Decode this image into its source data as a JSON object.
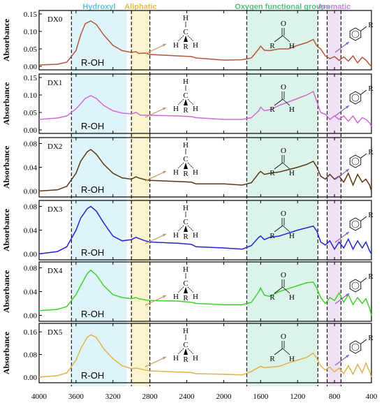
{
  "chart_data": {
    "type": "line",
    "x_ticks": [
      4000,
      3600,
      3200,
      2800,
      2400,
      2000,
      1600,
      1200,
      800,
      400
    ],
    "xlim": [
      4000,
      400
    ],
    "ylabel": "Absorbance",
    "regions": [
      {
        "label": "Hydroxyl",
        "x": [
          3650,
          3050
        ],
        "color": "#dff4f8",
        "label_color": "#5fc3dd"
      },
      {
        "label": "Aliphatic",
        "x": [
          3000,
          2800
        ],
        "color": "#fbf5cf",
        "label_color": "#e3bf49"
      },
      {
        "label": "Oxygen functional groups",
        "x": [
          1750,
          980
        ],
        "color": "#dcf3ea",
        "label_color": "#52c07e"
      },
      {
        "label": "Aromatic",
        "x": [
          880,
          730
        ],
        "color": "#f0e2f5",
        "label_color": "#c585d6"
      }
    ],
    "dashed_lines": [
      3650,
      3000,
      2800,
      1750,
      980,
      880,
      730
    ],
    "group_labels": {
      "roh": "R-OH"
    },
    "panels": [
      {
        "name": "DX0",
        "color": "#b5553d",
        "ylim": [
          -0.01,
          0.16
        ],
        "yticks": [
          "0.00",
          "0.05",
          "0.10",
          "0.15"
        ],
        "ytick_vals": [
          0,
          0.05,
          0.1,
          0.15
        ],
        "points": [
          [
            4000,
            0.004
          ],
          [
            3800,
            0.006
          ],
          [
            3700,
            0.012
          ],
          [
            3600,
            0.045
          ],
          [
            3550,
            0.09
          ],
          [
            3500,
            0.122
          ],
          [
            3440,
            0.13
          ],
          [
            3380,
            0.12
          ],
          [
            3300,
            0.09
          ],
          [
            3200,
            0.06
          ],
          [
            3100,
            0.045
          ],
          [
            3000,
            0.04
          ],
          [
            2950,
            0.042
          ],
          [
            2920,
            0.037
          ],
          [
            2850,
            0.038
          ],
          [
            2800,
            0.034
          ],
          [
            2500,
            0.03
          ],
          [
            2350,
            0.028
          ],
          [
            2300,
            0.024
          ],
          [
            2000,
            0.018
          ],
          [
            1800,
            0.019
          ],
          [
            1700,
            0.024
          ],
          [
            1620,
            0.05
          ],
          [
            1600,
            0.058
          ],
          [
            1560,
            0.046
          ],
          [
            1500,
            0.045
          ],
          [
            1400,
            0.05
          ],
          [
            1300,
            0.05
          ],
          [
            1200,
            0.06
          ],
          [
            1100,
            0.068
          ],
          [
            1030,
            0.077
          ],
          [
            990,
            0.058
          ],
          [
            950,
            0.05
          ],
          [
            900,
            0.03
          ],
          [
            850,
            0.022
          ],
          [
            800,
            0.028
          ],
          [
            750,
            0.017
          ],
          [
            700,
            0.027
          ],
          [
            650,
            0.015
          ],
          [
            600,
            0.03
          ],
          [
            550,
            0.01
          ],
          [
            500,
            0.026
          ],
          [
            460,
            0.018
          ],
          [
            420,
            0.005
          ],
          [
            400,
            0.0
          ]
        ]
      },
      {
        "name": "DX1",
        "color": "#d069d6",
        "ylim": [
          -0.01,
          0.16
        ],
        "yticks": [
          "0.00",
          "0.05",
          "0.10",
          "0.15"
        ],
        "ytick_vals": [
          0,
          0.05,
          0.1,
          0.15
        ],
        "points": [
          [
            4000,
            0.03
          ],
          [
            3800,
            0.034
          ],
          [
            3700,
            0.04
          ],
          [
            3600,
            0.06
          ],
          [
            3500,
            0.09
          ],
          [
            3440,
            0.098
          ],
          [
            3380,
            0.09
          ],
          [
            3300,
            0.07
          ],
          [
            3200,
            0.055
          ],
          [
            3100,
            0.048
          ],
          [
            3000,
            0.046
          ],
          [
            2950,
            0.05
          ],
          [
            2900,
            0.042
          ],
          [
            2800,
            0.042
          ],
          [
            2500,
            0.04
          ],
          [
            2350,
            0.038
          ],
          [
            2300,
            0.035
          ],
          [
            2000,
            0.03
          ],
          [
            1800,
            0.03
          ],
          [
            1700,
            0.035
          ],
          [
            1620,
            0.055
          ],
          [
            1600,
            0.065
          ],
          [
            1560,
            0.055
          ],
          [
            1500,
            0.058
          ],
          [
            1400,
            0.07
          ],
          [
            1300,
            0.08
          ],
          [
            1200,
            0.09
          ],
          [
            1100,
            0.1
          ],
          [
            1030,
            0.11
          ],
          [
            990,
            0.08
          ],
          [
            950,
            0.05
          ],
          [
            900,
            0.045
          ],
          [
            850,
            0.03
          ],
          [
            800,
            0.04
          ],
          [
            750,
            0.03
          ],
          [
            700,
            0.04
          ],
          [
            650,
            0.025
          ],
          [
            600,
            0.04
          ],
          [
            550,
            0.02
          ],
          [
            500,
            0.035
          ],
          [
            460,
            0.03
          ],
          [
            420,
            0.02
          ],
          [
            400,
            0.01
          ]
        ]
      },
      {
        "name": "DX2",
        "color": "#5a3713",
        "ylim": [
          -0.01,
          0.09
        ],
        "yticks": [
          "0.00",
          "0.04",
          "0.08"
        ],
        "ytick_vals": [
          0,
          0.04,
          0.08
        ],
        "points": [
          [
            4000,
            0.0
          ],
          [
            3800,
            0.002
          ],
          [
            3700,
            0.008
          ],
          [
            3600,
            0.03
          ],
          [
            3550,
            0.05
          ],
          [
            3480,
            0.066
          ],
          [
            3440,
            0.07
          ],
          [
            3380,
            0.062
          ],
          [
            3300,
            0.045
          ],
          [
            3200,
            0.03
          ],
          [
            3100,
            0.022
          ],
          [
            3000,
            0.02
          ],
          [
            2950,
            0.024
          ],
          [
            2920,
            0.022
          ],
          [
            2850,
            0.019
          ],
          [
            2800,
            0.018
          ],
          [
            2500,
            0.016
          ],
          [
            2350,
            0.015
          ],
          [
            2300,
            0.012
          ],
          [
            2000,
            0.012
          ],
          [
            1800,
            0.01
          ],
          [
            1700,
            0.014
          ],
          [
            1620,
            0.03
          ],
          [
            1600,
            0.033
          ],
          [
            1560,
            0.028
          ],
          [
            1500,
            0.03
          ],
          [
            1400,
            0.032
          ],
          [
            1300,
            0.036
          ],
          [
            1200,
            0.04
          ],
          [
            1100,
            0.045
          ],
          [
            1030,
            0.05
          ],
          [
            990,
            0.04
          ],
          [
            950,
            0.025
          ],
          [
            900,
            0.02
          ],
          [
            850,
            0.028
          ],
          [
            800,
            0.02
          ],
          [
            750,
            0.025
          ],
          [
            700,
            0.015
          ],
          [
            650,
            0.03
          ],
          [
            600,
            0.01
          ],
          [
            550,
            0.028
          ],
          [
            500,
            0.015
          ],
          [
            460,
            0.02
          ],
          [
            420,
            0.01
          ],
          [
            400,
            0.0
          ]
        ]
      },
      {
        "name": "DX3",
        "color": "#2424d0",
        "ylim": [
          -0.01,
          0.09
        ],
        "yticks": [
          "0.00",
          "0.04",
          "0.08"
        ],
        "ytick_vals": [
          0,
          0.04,
          0.08
        ],
        "points": [
          [
            4000,
            0.0
          ],
          [
            3800,
            0.004
          ],
          [
            3700,
            0.012
          ],
          [
            3600,
            0.04
          ],
          [
            3550,
            0.06
          ],
          [
            3480,
            0.076
          ],
          [
            3440,
            0.08
          ],
          [
            3380,
            0.072
          ],
          [
            3300,
            0.052
          ],
          [
            3200,
            0.03
          ],
          [
            3100,
            0.022
          ],
          [
            3000,
            0.024
          ],
          [
            2950,
            0.028
          ],
          [
            2920,
            0.026
          ],
          [
            2850,
            0.022
          ],
          [
            2800,
            0.02
          ],
          [
            2500,
            0.018
          ],
          [
            2350,
            0.016
          ],
          [
            2300,
            0.012
          ],
          [
            2000,
            0.01
          ],
          [
            1800,
            0.008
          ],
          [
            1700,
            0.014
          ],
          [
            1620,
            0.028
          ],
          [
            1600,
            0.03
          ],
          [
            1560,
            0.024
          ],
          [
            1500,
            0.028
          ],
          [
            1400,
            0.03
          ],
          [
            1300,
            0.035
          ],
          [
            1200,
            0.04
          ],
          [
            1100,
            0.044
          ],
          [
            1030,
            0.047
          ],
          [
            990,
            0.038
          ],
          [
            950,
            0.02
          ],
          [
            900,
            0.015
          ],
          [
            850,
            0.022
          ],
          [
            800,
            0.008
          ],
          [
            750,
            0.02
          ],
          [
            700,
            0.01
          ],
          [
            650,
            0.025
          ],
          [
            600,
            0.008
          ],
          [
            550,
            0.022
          ],
          [
            500,
            0.01
          ],
          [
            460,
            0.02
          ],
          [
            420,
            0.005
          ],
          [
            400,
            0.0
          ]
        ]
      },
      {
        "name": "DX4",
        "color": "#3fd12b",
        "ylim": [
          -0.01,
          0.09
        ],
        "yticks": [
          "0.00",
          "0.04",
          "0.08"
        ],
        "ytick_vals": [
          0,
          0.04,
          0.08
        ],
        "points": [
          [
            4000,
            0.008
          ],
          [
            3800,
            0.01
          ],
          [
            3700,
            0.015
          ],
          [
            3600,
            0.035
          ],
          [
            3550,
            0.05
          ],
          [
            3480,
            0.07
          ],
          [
            3440,
            0.076
          ],
          [
            3380,
            0.068
          ],
          [
            3300,
            0.05
          ],
          [
            3200,
            0.035
          ],
          [
            3100,
            0.03
          ],
          [
            3000,
            0.028
          ],
          [
            2950,
            0.03
          ],
          [
            2920,
            0.028
          ],
          [
            2850,
            0.026
          ],
          [
            2800,
            0.025
          ],
          [
            2500,
            0.024
          ],
          [
            2350,
            0.022
          ],
          [
            2300,
            0.02
          ],
          [
            2000,
            0.018
          ],
          [
            1800,
            0.018
          ],
          [
            1700,
            0.022
          ],
          [
            1620,
            0.04
          ],
          [
            1600,
            0.046
          ],
          [
            1560,
            0.034
          ],
          [
            1500,
            0.032
          ],
          [
            1400,
            0.04
          ],
          [
            1300,
            0.045
          ],
          [
            1200,
            0.05
          ],
          [
            1100,
            0.055
          ],
          [
            1030,
            0.056
          ],
          [
            990,
            0.045
          ],
          [
            950,
            0.03
          ],
          [
            900,
            0.02
          ],
          [
            850,
            0.03
          ],
          [
            800,
            0.025
          ],
          [
            750,
            0.038
          ],
          [
            700,
            0.022
          ],
          [
            650,
            0.035
          ],
          [
            600,
            0.018
          ],
          [
            550,
            0.03
          ],
          [
            500,
            0.02
          ],
          [
            460,
            0.028
          ],
          [
            420,
            0.012
          ],
          [
            400,
            0.0
          ]
        ]
      },
      {
        "name": "DX5",
        "color": "#e0b24e",
        "ylim": [
          -0.02,
          0.19
        ],
        "yticks": [
          "0.00",
          "0.08",
          "0.16"
        ],
        "ytick_vals": [
          0,
          0.08,
          0.16
        ],
        "points": [
          [
            4000,
            0.0
          ],
          [
            3800,
            0.005
          ],
          [
            3700,
            0.015
          ],
          [
            3600,
            0.06
          ],
          [
            3550,
            0.1
          ],
          [
            3480,
            0.14
          ],
          [
            3440,
            0.15
          ],
          [
            3380,
            0.14
          ],
          [
            3300,
            0.1
          ],
          [
            3200,
            0.065
          ],
          [
            3100,
            0.04
          ],
          [
            3000,
            0.03
          ],
          [
            2950,
            0.032
          ],
          [
            2920,
            0.03
          ],
          [
            2850,
            0.025
          ],
          [
            2800,
            0.022
          ],
          [
            2500,
            0.018
          ],
          [
            2350,
            0.016
          ],
          [
            2300,
            0.012
          ],
          [
            2000,
            0.01
          ],
          [
            1800,
            0.008
          ],
          [
            1700,
            0.02
          ],
          [
            1620,
            0.035
          ],
          [
            1600,
            0.038
          ],
          [
            1560,
            0.033
          ],
          [
            1500,
            0.035
          ],
          [
            1400,
            0.038
          ],
          [
            1300,
            0.05
          ],
          [
            1200,
            0.06
          ],
          [
            1100,
            0.07
          ],
          [
            1030,
            0.085
          ],
          [
            990,
            0.065
          ],
          [
            950,
            0.04
          ],
          [
            900,
            0.025
          ],
          [
            850,
            0.035
          ],
          [
            800,
            0.018
          ],
          [
            750,
            0.032
          ],
          [
            700,
            0.012
          ],
          [
            650,
            0.04
          ],
          [
            600,
            0.01
          ],
          [
            550,
            0.045
          ],
          [
            500,
            0.015
          ],
          [
            460,
            0.05
          ],
          [
            420,
            0.02
          ],
          [
            400,
            0.0
          ]
        ]
      }
    ]
  }
}
